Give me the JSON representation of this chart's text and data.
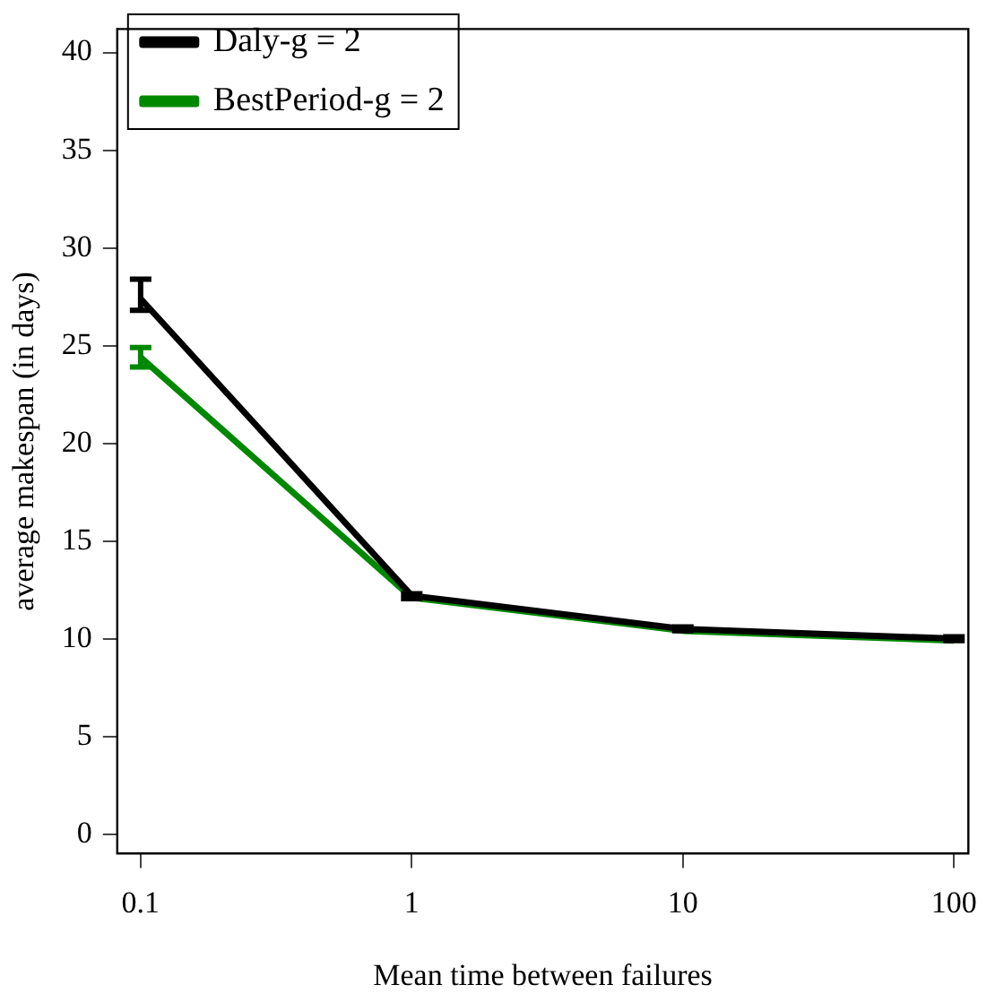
{
  "chart_data": {
    "type": "line",
    "xlabel": "Mean time between failures",
    "ylabel": "average makespan (in days)",
    "x": [
      0.1,
      1,
      10,
      100
    ],
    "log": "x",
    "xlim": [
      0.082,
      113
    ],
    "xticks": [
      0.1,
      1,
      10,
      100
    ],
    "ylim": [
      -1,
      41.2
    ],
    "yticks": [
      0,
      5,
      10,
      15,
      20,
      25,
      30,
      35,
      40
    ],
    "grid": false,
    "legend": "top left",
    "marker": "none",
    "line_style": "solid",
    "series": [
      {
        "name": "Daly-g = 2",
        "color": "#000000",
        "values": [
          27.4,
          12.2,
          10.5,
          10.0
        ],
        "errors": [
          [
            26.8,
            28.4
          ],
          [
            12.05,
            12.3
          ],
          [
            10.4,
            10.6
          ],
          [
            9.9,
            10.1
          ]
        ]
      },
      {
        "name": "BestPeriod-g = 2",
        "color": "#008800",
        "values": [
          24.4,
          12.1,
          10.4,
          9.9
        ],
        "errors": [
          [
            23.9,
            24.9
          ],
          null,
          null,
          null
        ]
      }
    ]
  }
}
